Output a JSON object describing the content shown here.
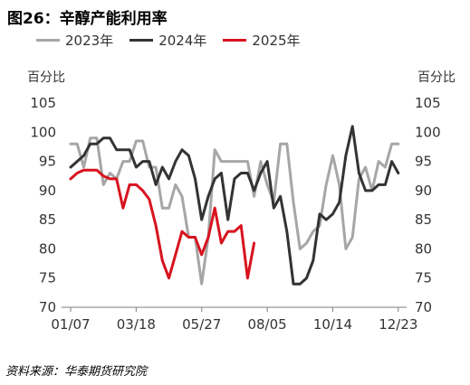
{
  "title": "图26：辛醇产能利用率",
  "source": "资料来源：华泰期货研究院",
  "chart_data": {
    "type": "line",
    "ylabel_left": "百分比",
    "ylabel_right": "百分比",
    "ylim": [
      70,
      105
    ],
    "yticks": [
      70,
      75,
      80,
      85,
      90,
      95,
      100,
      105
    ],
    "xticks": [
      "01/07",
      "03/18",
      "05/27",
      "08/05",
      "10/14",
      "12/23"
    ],
    "x_range_days": [
      0,
      355
    ],
    "grid": false,
    "legend_position": "top",
    "series": [
      {
        "name": "2023年",
        "color": "#a6a6a6",
        "x": [
          0,
          7,
          14,
          21,
          28,
          35,
          42,
          49,
          56,
          63,
          70,
          77,
          84,
          91,
          98,
          105,
          112,
          119,
          126,
          133,
          140,
          147,
          154,
          161,
          168,
          175,
          182,
          189,
          196,
          203,
          210,
          217,
          224,
          231,
          238,
          245,
          252,
          259,
          266,
          273,
          280,
          287,
          294,
          301,
          308,
          315,
          322,
          329,
          336,
          343,
          350
        ],
        "values": [
          98,
          98,
          94,
          99,
          99,
          91,
          93,
          92,
          95,
          95,
          98.5,
          98.5,
          94,
          94,
          87,
          87,
          91,
          89,
          82,
          82,
          74,
          82,
          97,
          95,
          95,
          95,
          95,
          95,
          89,
          95,
          91,
          88,
          98,
          98,
          88,
          80,
          81,
          83,
          84,
          91,
          96,
          91,
          80,
          82,
          92,
          94,
          90,
          95,
          94,
          98,
          98
        ]
      },
      {
        "name": "2024年",
        "color": "#333333",
        "x": [
          0,
          7,
          14,
          21,
          28,
          35,
          42,
          49,
          56,
          63,
          70,
          77,
          84,
          91,
          98,
          105,
          112,
          119,
          126,
          133,
          140,
          147,
          154,
          161,
          168,
          175,
          182,
          189,
          196,
          203,
          210,
          217,
          224,
          231,
          238,
          245,
          252,
          259,
          266,
          273,
          280,
          287,
          294,
          301,
          308,
          315,
          322,
          329,
          336,
          343,
          350
        ],
        "values": [
          94,
          95,
          96,
          98,
          98,
          99,
          99,
          97,
          97,
          97,
          94,
          95,
          95,
          91,
          94,
          92,
          95,
          97,
          96,
          92,
          85,
          89,
          92,
          93,
          85,
          92,
          93,
          93,
          90,
          93,
          95,
          87,
          89,
          83,
          74,
          74,
          75,
          78,
          86,
          85,
          86,
          88,
          96,
          101,
          93,
          90,
          90,
          91,
          91,
          95,
          93
        ]
      },
      {
        "name": "2025年",
        "color": "#d7131e",
        "x": [
          0,
          7,
          14,
          21,
          28,
          35,
          42,
          49,
          56,
          63,
          70,
          77,
          84,
          91,
          98,
          105,
          112,
          119,
          126,
          133,
          140,
          147,
          154,
          161,
          168,
          175,
          182,
          189,
          196
        ],
        "values": [
          92,
          93,
          93.5,
          93.5,
          93.5,
          92.5,
          92,
          92,
          87,
          91,
          91,
          90,
          88.5,
          84,
          78,
          75,
          79,
          83,
          82,
          82,
          79,
          82,
          87,
          81,
          83,
          83,
          84,
          75,
          81
        ]
      }
    ]
  }
}
